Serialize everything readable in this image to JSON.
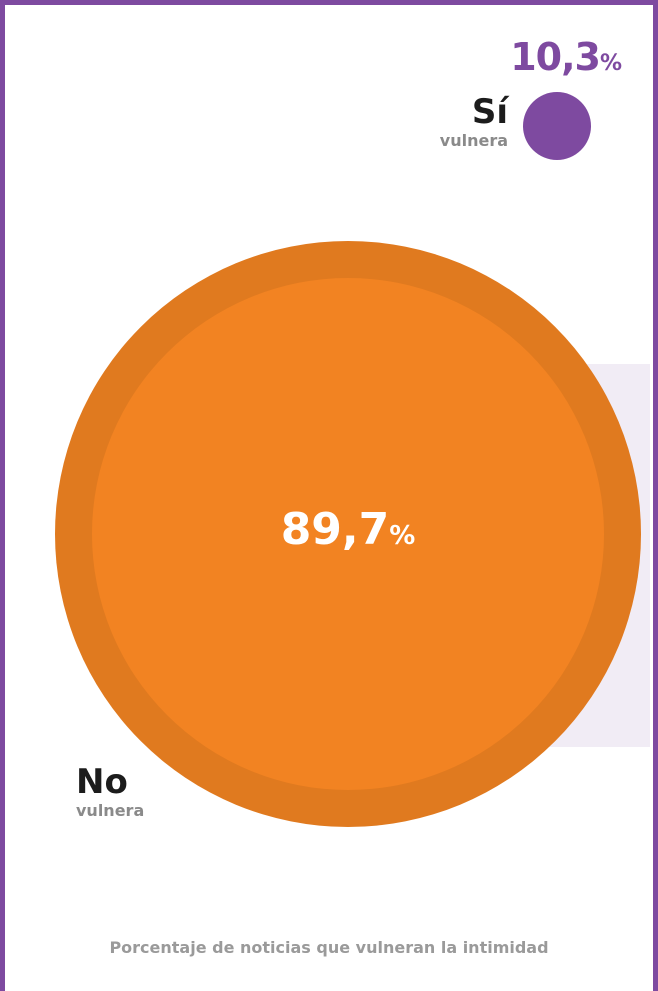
{
  "chart_data": {
    "type": "bubble",
    "title": "",
    "caption": "Porcentaje de noticias que vulneran la intimidad",
    "unit": "%",
    "series": [
      {
        "label": "Sí",
        "sublabel": "vulnera",
        "value": 10.3,
        "value_text": "10,3",
        "color": "#7e4aa0"
      },
      {
        "label": "No",
        "sublabel": "vulnera",
        "value": 89.7,
        "value_text": "89,7",
        "color": "#f28322",
        "ring_color": "#e07a1f"
      }
    ]
  }
}
